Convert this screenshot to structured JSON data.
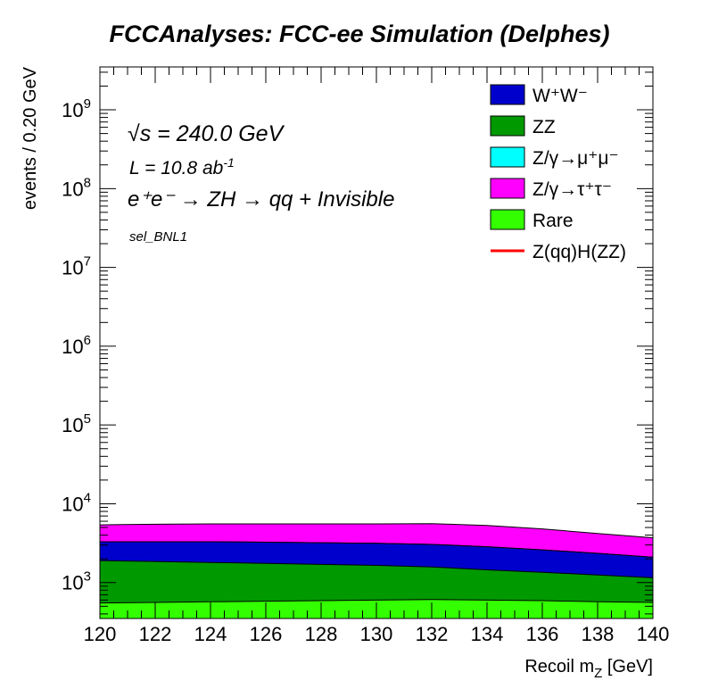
{
  "chart_data": {
    "type": "area",
    "title": "FCCAnalyses: FCC-ee Simulation (Delphes)",
    "xlabel": "Recoil m_Z [GeV]",
    "ylabel": "events / 0.20 GeV",
    "xlim": [
      120,
      140
    ],
    "ylim": [
      350,
      3500000000
    ],
    "yscale": "log",
    "x_ticks": [
      "120",
      "122",
      "124",
      "126",
      "128",
      "130",
      "132",
      "134",
      "136",
      "138",
      "140"
    ],
    "y_ticks": [
      {
        "base": "10",
        "exp": "3"
      },
      {
        "base": "10",
        "exp": "4"
      },
      {
        "base": "10",
        "exp": "5"
      },
      {
        "base": "10",
        "exp": "6"
      },
      {
        "base": "10",
        "exp": "7"
      },
      {
        "base": "10",
        "exp": "8"
      },
      {
        "base": "10",
        "exp": "9"
      }
    ],
    "annotations": {
      "sqrt_s": "√s = 240.0 GeV",
      "lumi_prefix": "L = 10.8 ab",
      "lumi_exp": "-1",
      "process": "e⁺e⁻ → ZH → qq + Invisible",
      "selection": "sel_BNL1"
    },
    "x": [
      120,
      122,
      124,
      126,
      128,
      130,
      132,
      134,
      136,
      138,
      140
    ],
    "stack_note": "values are cumulative stacked totals",
    "series": [
      {
        "name": "Rare",
        "color": "#33ff00",
        "values": [
          550,
          560,
          570,
          580,
          590,
          600,
          610,
          600,
          590,
          570,
          560
        ]
      },
      {
        "name": "ZZ",
        "color": "#009900",
        "values": [
          1900,
          1850,
          1800,
          1750,
          1700,
          1650,
          1580,
          1450,
          1350,
          1250,
          1150
        ]
      },
      {
        "name": "W⁺W⁻",
        "color": "#0000cc",
        "values": [
          3300,
          3300,
          3300,
          3250,
          3200,
          3150,
          3050,
          2850,
          2600,
          2350,
          2100
        ]
      },
      {
        "name": "Z/γ→μ⁺μ⁻",
        "color": "#00ffff",
        "values": [
          3300,
          3300,
          3300,
          3250,
          3200,
          3150,
          3050,
          2850,
          2600,
          2350,
          2100
        ]
      },
      {
        "name": "Z/γ→τ⁺τ⁻",
        "color": "#ff00ff",
        "values": [
          5400,
          5500,
          5550,
          5550,
          5550,
          5550,
          5600,
          5300,
          4800,
          4200,
          3700
        ]
      }
    ],
    "legend": [
      {
        "label": "W⁺W⁻",
        "color": "#0000cc",
        "kind": "box"
      },
      {
        "label": "ZZ",
        "color": "#009900",
        "kind": "box"
      },
      {
        "label": "Z/γ→μ⁺μ⁻",
        "color": "#00ffff",
        "kind": "box"
      },
      {
        "label": "Z/γ→τ⁺τ⁻",
        "color": "#ff00ff",
        "kind": "box"
      },
      {
        "label": "Rare",
        "color": "#33ff00",
        "kind": "box"
      },
      {
        "label": "Z(qq)H(ZZ)",
        "color": "#ff0000",
        "kind": "line"
      }
    ],
    "legend_position": "top-right",
    "grid": false
  }
}
